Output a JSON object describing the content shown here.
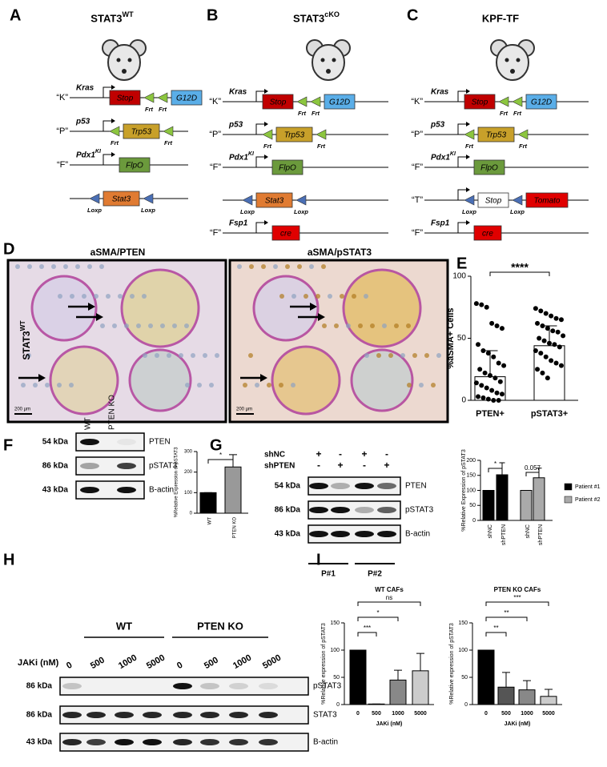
{
  "genotypes": [
    {
      "letter": "A",
      "title": "STAT3",
      "title_sup": "WT",
      "rows": [
        {
          "label": "“K”",
          "gene": "Kras",
          "promoter": true,
          "items": [
            {
              "box": "Stop",
              "color": "#c00000",
              "text_color": "#ffffff"
            },
            {
              "site": "Frt",
              "color": "#8cc63f"
            },
            {
              "site": "Frt",
              "color": "#8cc63f"
            },
            {
              "box": "G12D",
              "color": "#5aaee8",
              "text_color": "#ffffff"
            }
          ]
        },
        {
          "label": "“P”",
          "gene": "p53",
          "promoter": true,
          "items": [
            {
              "site": "Frt",
              "color": "#8cc63f"
            },
            {
              "box": "Trp53",
              "color": "#c8a02a",
              "text_color": "#ffffff"
            },
            {
              "site": "Frt",
              "color": "#8cc63f"
            }
          ]
        },
        {
          "label": "“F”",
          "gene": "Pdx1",
          "gene_sup": "KI",
          "promoter": true,
          "items": [
            {
              "box": "FlpO",
              "color": "#6b9a3c",
              "text_color": "#ffffff"
            }
          ]
        },
        {
          "promoter": false,
          "items": [
            {
              "site": "Loxp",
              "color": "#4a6fb5"
            },
            {
              "box": "Stat3",
              "color": "#e07b32",
              "text_color": "#000000"
            },
            {
              "site": "Loxp",
              "color": "#4a6fb5"
            }
          ]
        }
      ]
    },
    {
      "letter": "B",
      "title": "STAT3",
      "title_sup": "cKO",
      "rows": [
        {
          "label": "“K”",
          "gene": "Kras",
          "promoter": true,
          "items": [
            {
              "box": "Stop",
              "color": "#c00000",
              "text_color": "#ffffff"
            },
            {
              "site": "Frt",
              "color": "#8cc63f"
            },
            {
              "site": "Frt",
              "color": "#8cc63f"
            },
            {
              "box": "G12D",
              "color": "#5aaee8",
              "text_color": "#ffffff"
            }
          ]
        },
        {
          "label": "“P”",
          "gene": "p53",
          "promoter": true,
          "items": [
            {
              "site": "Frt",
              "color": "#8cc63f"
            },
            {
              "box": "Trp53",
              "color": "#c8a02a",
              "text_color": "#ffffff"
            },
            {
              "site": "Frt",
              "color": "#8cc63f"
            }
          ]
        },
        {
          "label": "“F”",
          "gene": "Pdx1",
          "gene_sup": "KI",
          "promoter": true,
          "items": [
            {
              "box": "FlpO",
              "color": "#6b9a3c",
              "text_color": "#ffffff"
            }
          ]
        },
        {
          "promoter": false,
          "items": [
            {
              "site": "Loxp",
              "color": "#4a6fb5"
            },
            {
              "box": "Stat3",
              "color": "#e07b32",
              "text_color": "#000000"
            },
            {
              "site": "Loxp",
              "color": "#4a6fb5"
            }
          ]
        },
        {
          "label": "“F”",
          "gene": "Fsp1",
          "promoter": true,
          "items": [
            {
              "box": "cre",
              "color": "#e00000",
              "text_color": "#ffffff"
            }
          ]
        }
      ]
    },
    {
      "letter": "C",
      "title": "KPF-TF",
      "rows": [
        {
          "label": "“K”",
          "gene": "Kras",
          "promoter": true,
          "items": [
            {
              "box": "Stop",
              "color": "#c00000",
              "text_color": "#ffffff"
            },
            {
              "site": "Frt",
              "color": "#8cc63f"
            },
            {
              "site": "Frt",
              "color": "#8cc63f"
            },
            {
              "box": "G12D",
              "color": "#5aaee8",
              "text_color": "#ffffff"
            }
          ]
        },
        {
          "label": "“P”",
          "gene": "p53",
          "promoter": true,
          "items": [
            {
              "site": "Frt",
              "color": "#8cc63f"
            },
            {
              "box": "Trp53",
              "color": "#c8a02a",
              "text_color": "#ffffff"
            },
            {
              "site": "Frt",
              "color": "#8cc63f"
            }
          ]
        },
        {
          "label": "“F”",
          "gene": "Pdx1",
          "gene_sup": "KI",
          "promoter": true,
          "items": [
            {
              "box": "FlpO",
              "color": "#6b9a3c",
              "text_color": "#ffffff"
            }
          ]
        },
        {
          "label": "“T”",
          "promoter": true,
          "items": [
            {
              "site": "Loxp",
              "color": "#4a6fb5"
            },
            {
              "box": "Stop",
              "color": "#ffffff",
              "text_color": "#000000"
            },
            {
              "site": "Loxp",
              "color": "#4a6fb5"
            },
            {
              "box": "Tomato",
              "color": "#e00000",
              "text_color": "#ffffff"
            }
          ]
        },
        {
          "label": "“F”",
          "gene": "Fsp1",
          "promoter": true,
          "items": [
            {
              "box": "cre",
              "color": "#e00000",
              "text_color": "#ffffff"
            }
          ]
        }
      ]
    }
  ],
  "histology": {
    "letter": "D",
    "side_label": "STAT3",
    "side_label_sup": "WT",
    "panels": [
      {
        "title": "aSMA/PTEN",
        "scale": "200 µm"
      },
      {
        "title": "aSMA/pSTAT3",
        "scale": "200 µm"
      }
    ]
  },
  "blots": [
    {
      "letter": "F",
      "lanes": [
        "WT",
        "PTEN KO"
      ],
      "rows": [
        {
          "size": "54 kDa",
          "protein": "PTEN"
        },
        {
          "size": "86 kDa",
          "protein": "pSTAT3"
        },
        {
          "size": "43 kDa",
          "protein": "B-actin"
        }
      ]
    },
    {
      "letter": "G",
      "conditions": [
        {
          "name": "shNC",
          "marks": [
            "+",
            "-",
            "+",
            "-"
          ]
        },
        {
          "name": "shPTEN",
          "marks": [
            "-",
            "+",
            "-",
            "+"
          ]
        }
      ],
      "rows": [
        {
          "size": "54 kDa",
          "protein": "PTEN"
        },
        {
          "size": "86 kDa",
          "protein": "pSTAT3"
        },
        {
          "size": "43 kDa",
          "protein": "B-actin"
        }
      ],
      "groups": [
        "P#1",
        "P#2"
      ]
    },
    {
      "letter": "H",
      "groups": [
        "WT",
        "PTEN KO"
      ],
      "treatment": "JAKi (nM)",
      "lanes": [
        "0",
        "500",
        "1000",
        "5000",
        "0",
        "500",
        "1000",
        "5000"
      ],
      "rows": [
        {
          "size": "86 kDa",
          "protein": "pSTAT3"
        },
        {
          "size": "86 kDa",
          "protein": "STAT3"
        },
        {
          "size": "43 kDa",
          "protein": "B-actin"
        }
      ]
    }
  ],
  "chart_data": [
    {
      "type": "bar",
      "letter": "E",
      "ylabel": "%aSMA+ Cells",
      "categories": [
        "PTEN+",
        "pSTAT3+"
      ],
      "values": [
        19,
        44
      ],
      "errors": [
        21,
        16
      ],
      "color": "#ffffff",
      "points": [
        [
          78,
          77,
          75,
          62,
          60,
          58,
          45,
          40,
          38,
          35,
          30,
          28,
          25,
          22,
          20,
          18,
          15,
          14,
          12,
          10,
          8,
          6,
          5,
          3,
          2,
          1,
          0,
          0
        ],
        [
          74,
          72,
          70,
          68,
          66,
          65,
          62,
          60,
          58,
          56,
          55,
          52,
          50,
          48,
          46,
          45,
          43,
          40,
          38,
          35,
          32,
          30,
          28,
          25,
          22,
          18
        ]
      ],
      "ylim": [
        0,
        100
      ],
      "yticks": [
        0,
        50,
        100
      ],
      "annotations": [
        "****"
      ]
    },
    {
      "type": "bar",
      "ylabel": "%Relative Expression of pSTAT3",
      "categories": [
        "WT",
        "PTEN KO"
      ],
      "values": [
        100,
        225
      ],
      "errors": [
        0,
        60
      ],
      "colors": [
        "#000000",
        "#999999"
      ],
      "ylim": [
        0,
        300
      ],
      "yticks": [
        0,
        100,
        200,
        300
      ],
      "annotations": [
        "*"
      ]
    },
    {
      "type": "bar",
      "ylabel": "%Relative Expression of pSTAT3",
      "categories": [
        "shNC",
        "shPTEN",
        "shNC",
        "shPTEN"
      ],
      "series": [
        {
          "name": "Patient #1",
          "color": "#000000",
          "values": [
            100,
            152,
            null,
            null
          ],
          "errors": [
            0,
            40,
            null,
            null
          ]
        },
        {
          "name": "Patient #2",
          "color": "#aaaaaa",
          "values": [
            null,
            null,
            100,
            142
          ],
          "errors": [
            null,
            null,
            0,
            32
          ]
        }
      ],
      "ylim": [
        0,
        200
      ],
      "yticks": [
        0,
        50,
        100,
        150,
        200
      ],
      "annotations": [
        "*",
        "0.057"
      ],
      "legend": "right"
    },
    {
      "type": "bar",
      "letter": "I",
      "title": "WT CAFs",
      "ylabel": "%Relative expression of pSTAT3",
      "xlabel": "JAKi (nM)",
      "categories": [
        "0",
        "500",
        "1000",
        "5000"
      ],
      "values": [
        100,
        1,
        45,
        62
      ],
      "errors": [
        0,
        0,
        18,
        32
      ],
      "colors": [
        "#000000",
        "#555555",
        "#888888",
        "#cccccc"
      ],
      "ylim": [
        0,
        150
      ],
      "yticks": [
        0,
        50,
        100,
        150
      ],
      "annotations": [
        "***",
        "*",
        "ns"
      ]
    },
    {
      "type": "bar",
      "title": "PTEN KO CAFs",
      "ylabel": "%Relative expression of pSTAT3",
      "xlabel": "JAKi (nM)",
      "categories": [
        "0",
        "500",
        "1000",
        "5000"
      ],
      "values": [
        100,
        32,
        27,
        15
      ],
      "errors": [
        0,
        27,
        17,
        13
      ],
      "colors": [
        "#000000",
        "#555555",
        "#888888",
        "#cccccc"
      ],
      "ylim": [
        0,
        150
      ],
      "yticks": [
        0,
        50,
        100,
        150
      ],
      "annotations": [
        "**",
        "**",
        "***"
      ]
    }
  ]
}
